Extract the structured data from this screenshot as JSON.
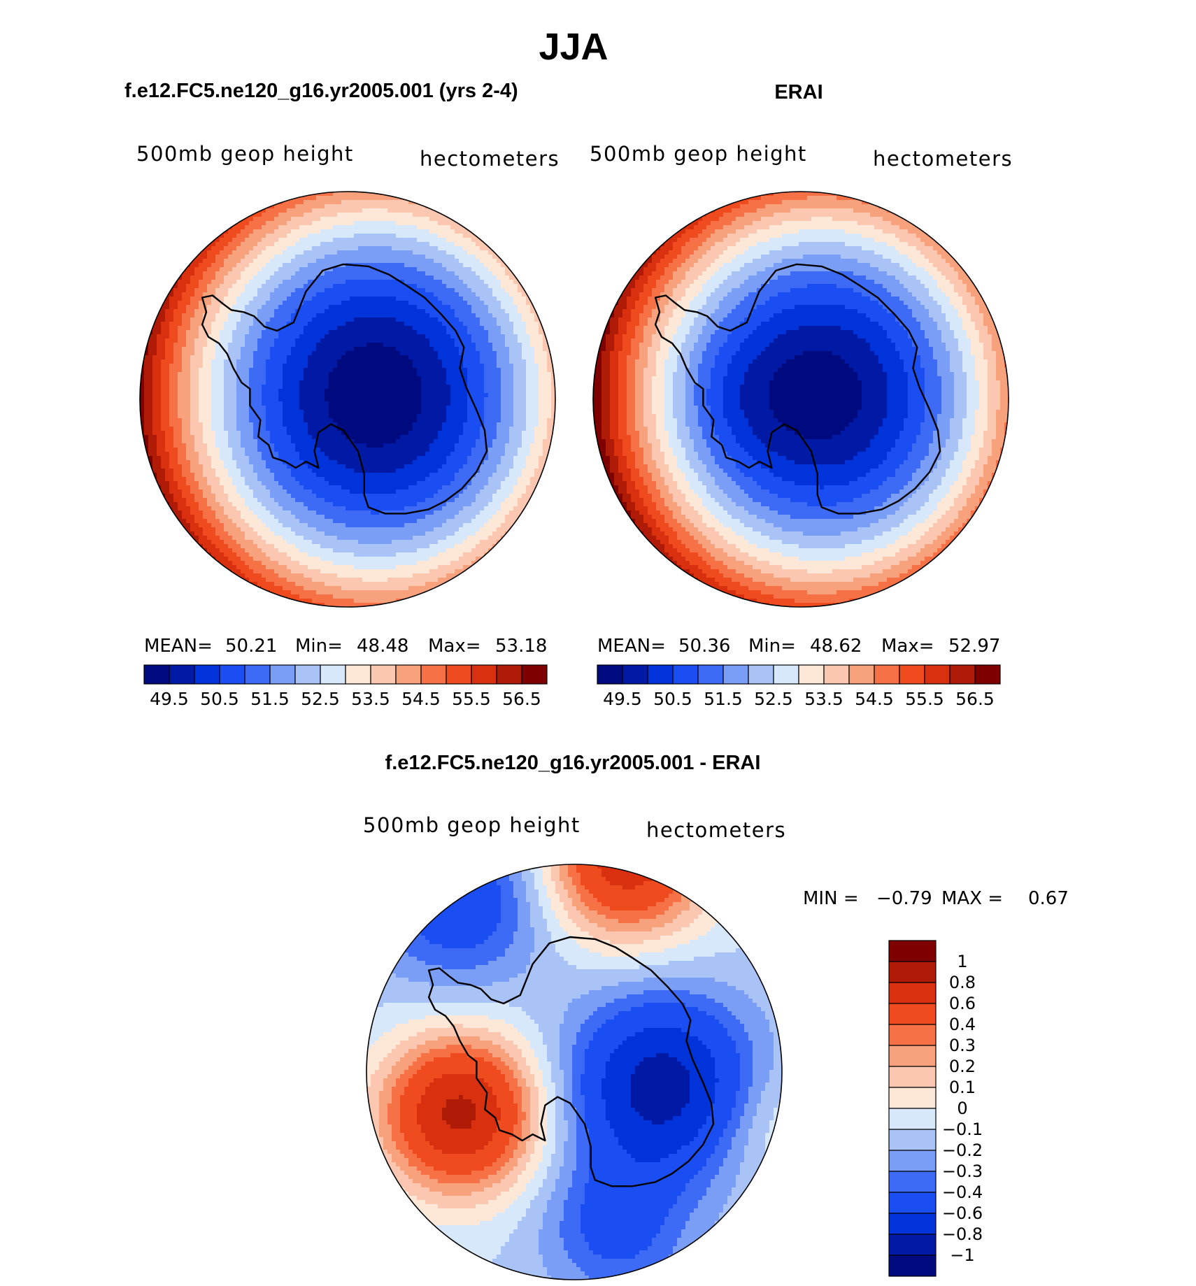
{
  "title": "JJA",
  "colors": {
    "abs_palette": [
      "#000a7f",
      "#001aa6",
      "#0033d9",
      "#1a4ef2",
      "#3d6bf5",
      "#7a9ef5",
      "#a9c3f7",
      "#d7e8fb",
      "#fde8d8",
      "#fbc7b0",
      "#f7a17d",
      "#f67146",
      "#f04b1e",
      "#d93110",
      "#b01b08",
      "#7f0000"
    ],
    "diff_palette": [
      "#000a7f",
      "#001aa6",
      "#0033d9",
      "#1a4ef2",
      "#3d6bf5",
      "#7a9ef5",
      "#a9c3f7",
      "#d7e8fb",
      "#fde8d8",
      "#fbc7b0",
      "#f7a17d",
      "#f67146",
      "#f04b1e",
      "#d93110",
      "#b01b08",
      "#7f0000"
    ]
  },
  "chart_data": [
    {
      "type": "heatmap",
      "projection": "south-polar-stereographic",
      "title": "f.e12.FC5.ne120_g16.yr2005.001 (yrs 2-4)",
      "left_label": "500mb geop height",
      "right_label": "hectometers",
      "stats": {
        "mean_label": "MEAN=",
        "mean": "50.21",
        "min_label": "Min=",
        "min": "48.48",
        "max_label": "Max=",
        "max": "53.18"
      },
      "colorbar_ticks": [
        "49.5",
        "50.5",
        "51.5",
        "52.5",
        "53.5",
        "54.5",
        "55.5",
        "56.5"
      ],
      "levels": [
        49,
        49.5,
        50,
        50.5,
        51,
        51.5,
        52,
        52.5,
        53
      ],
      "field": "model"
    },
    {
      "type": "heatmap",
      "projection": "south-polar-stereographic",
      "title": "ERAI",
      "left_label": "500mb geop height",
      "right_label": "hectometers",
      "stats": {
        "mean_label": "MEAN=",
        "mean": "50.36",
        "min_label": "Min=",
        "min": "48.62",
        "max_label": "Max=",
        "max": "52.97"
      },
      "colorbar_ticks": [
        "49.5",
        "50.5",
        "51.5",
        "52.5",
        "53.5",
        "54.5",
        "55.5",
        "56.5"
      ],
      "levels": [
        49,
        49.5,
        50,
        50.5,
        51,
        51.5,
        52,
        52.5,
        53
      ],
      "field": "obs"
    },
    {
      "type": "heatmap",
      "projection": "south-polar-stereographic",
      "title": "f.e12.FC5.ne120_g16.yr2005.001 - ERAI",
      "left_label": "500mb geop height",
      "right_label": "hectometers",
      "stats": {
        "min_label": "MIN =",
        "min": "−0.79",
        "max_label": "MAX =",
        "max": "0.67"
      },
      "colorbar_ticks": [
        "1",
        "0.8",
        "0.6",
        "0.4",
        "0.3",
        "0.2",
        "0.1",
        "0",
        "−0.1",
        "−0.2",
        "−0.3",
        "−0.4",
        "−0.6",
        "−0.8",
        "−1"
      ],
      "field": "diff"
    }
  ]
}
